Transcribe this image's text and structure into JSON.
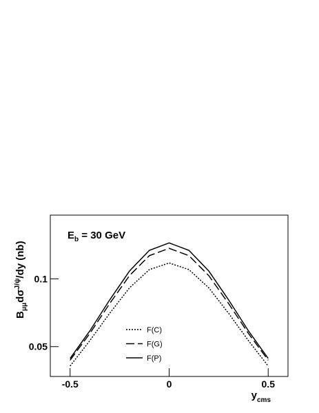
{
  "chart_data": {
    "type": "line",
    "annotation": [
      "E",
      "b",
      " = 30 GeV"
    ],
    "x_label": [
      "y",
      "cms"
    ],
    "y_label": [
      "B",
      "μμ",
      "dσ",
      "J/ψ",
      "/dy (nb)"
    ],
    "x": [
      -0.5,
      -0.4,
      -0.3,
      -0.2,
      -0.1,
      0,
      0.1,
      0.2,
      0.3,
      0.4,
      0.5
    ],
    "series": [
      {
        "name": "F(C)",
        "color": "#000000",
        "line_style": "dotted",
        "values": [
          0.0357,
          0.0545,
          0.0746,
          0.0934,
          0.1068,
          0.1117,
          0.1068,
          0.0934,
          0.0746,
          0.0545,
          0.0357
        ]
      },
      {
        "name": "F(G)",
        "color": "#000000",
        "line_style": "dashed",
        "values": [
          0.04,
          0.0598,
          0.0818,
          0.1024,
          0.1171,
          0.1225,
          0.1171,
          0.1024,
          0.0818,
          0.0598,
          0.04
        ]
      },
      {
        "name": "F(P)",
        "color": "#000000",
        "line_style": "solid",
        "values": [
          0.0413,
          0.0617,
          0.0845,
          0.1058,
          0.121,
          0.1265,
          0.121,
          0.1058,
          0.0845,
          0.0617,
          0.0413
        ]
      }
    ],
    "xlim": [
      -0.6,
      0.6
    ],
    "xticks": [
      -0.5,
      0,
      0.5
    ],
    "ylim": [
      0.028,
      0.147
    ],
    "yticks": [
      0.05,
      0.1
    ],
    "grid": false
  }
}
